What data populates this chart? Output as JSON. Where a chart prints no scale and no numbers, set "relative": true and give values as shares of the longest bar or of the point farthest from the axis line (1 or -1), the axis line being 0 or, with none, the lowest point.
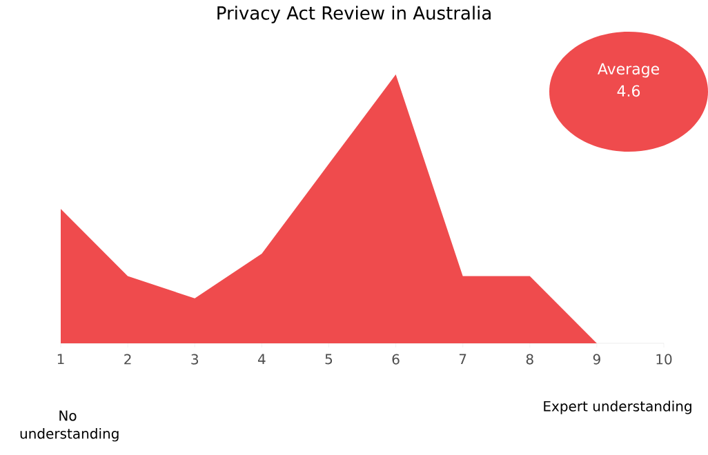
{
  "chart_data": {
    "type": "area",
    "title": "Privacy Act Review in Australia",
    "relative": true,
    "x": [
      1,
      2,
      3,
      4,
      5,
      6,
      7,
      8,
      9
    ],
    "values": [
      0.5,
      0.25,
      0.167,
      0.333,
      0.667,
      1,
      0.25,
      0.25,
      0
    ],
    "color": "#ef4b4d",
    "xlim": [
      1,
      10
    ],
    "xticks": [
      1,
      2,
      3,
      4,
      5,
      6,
      7,
      8,
      9,
      10
    ],
    "annotations": [
      "Average 4.6",
      "No understanding",
      "Expert understanding"
    ]
  }
}
